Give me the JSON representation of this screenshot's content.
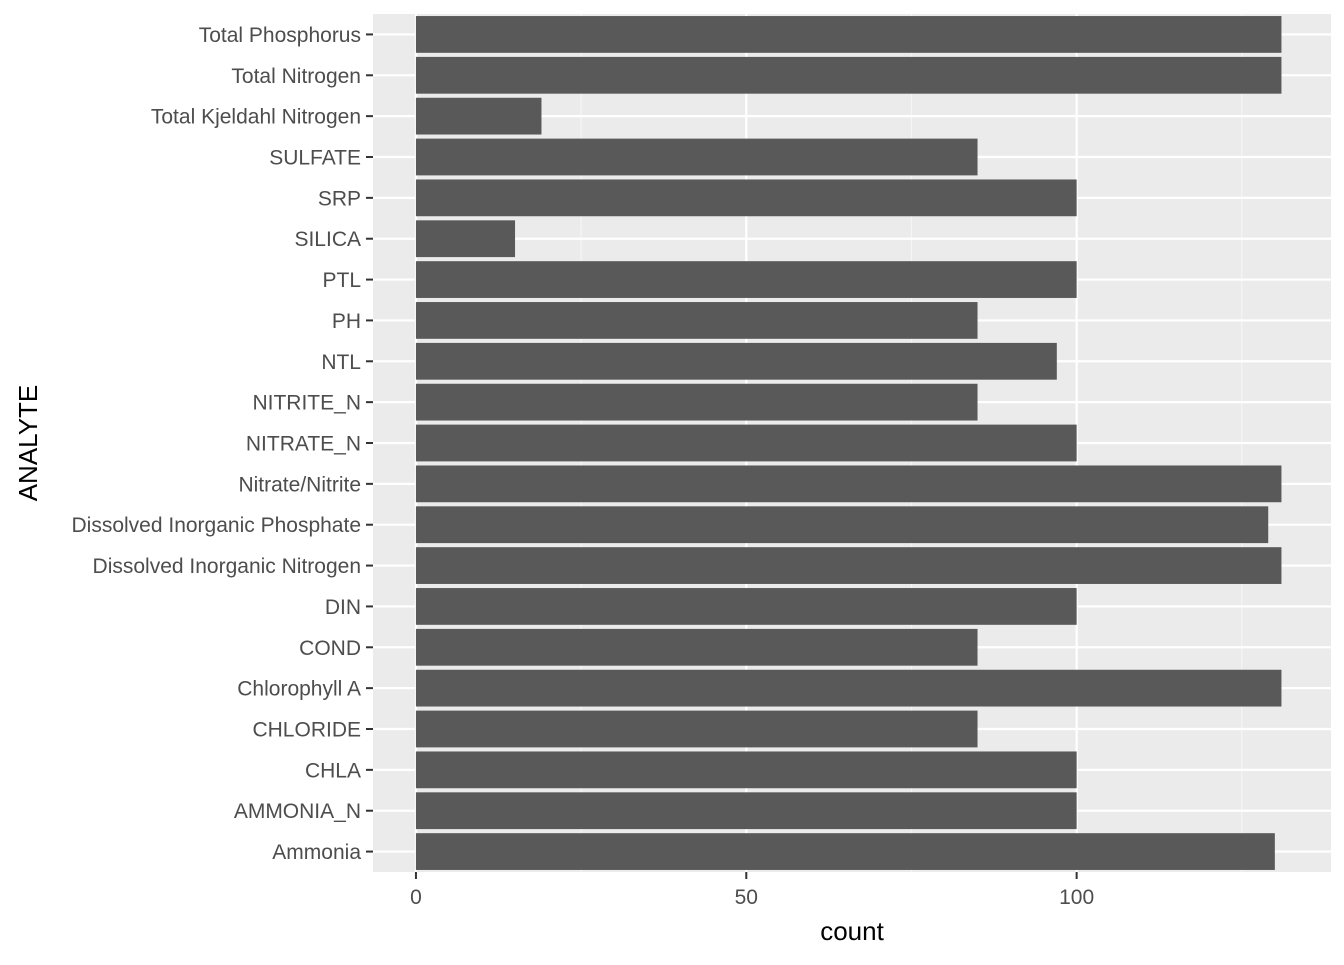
{
  "chart_data": {
    "type": "bar",
    "orientation": "horizontal",
    "title": "",
    "xlabel": "count",
    "ylabel": "ANALYTE",
    "xlim": [
      -6.5,
      138.5
    ],
    "xticks": [
      0,
      50,
      100
    ],
    "grid": true,
    "categories": [
      "Total Phosphorus",
      "Total Nitrogen",
      "Total Kjeldahl Nitrogen",
      "SULFATE",
      "SRP",
      "SILICA",
      "PTL",
      "PH",
      "NTL",
      "NITRITE_N",
      "NITRATE_N",
      "Nitrate/Nitrite",
      "Dissolved Inorganic Phosphate",
      "Dissolved Inorganic Nitrogen",
      "DIN",
      "COND",
      "Chlorophyll A",
      "CHLORIDE",
      "CHLA",
      "AMMONIA_N",
      "Ammonia"
    ],
    "values": [
      131,
      131,
      19,
      85,
      100,
      15,
      100,
      85,
      97,
      85,
      100,
      131,
      129,
      131,
      100,
      85,
      131,
      85,
      100,
      100,
      130
    ],
    "colors": {
      "bar": "#595959",
      "panel": "#ebebeb",
      "grid_major": "#ffffff",
      "grid_minor": "#f5f5f5",
      "tick_label": "#4d4d4d",
      "axis_title": "#000000"
    }
  }
}
